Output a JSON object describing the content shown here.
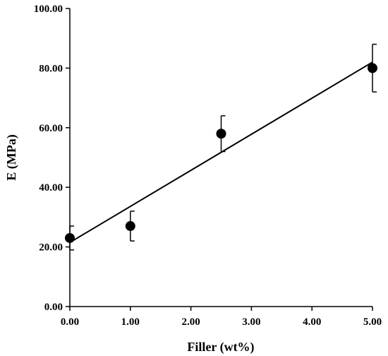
{
  "chart_data": {
    "type": "scatter",
    "xlabel": "Filler (wt%)",
    "ylabel": "E (MPa)",
    "xlim": [
      0,
      5
    ],
    "ylim": [
      0,
      100
    ],
    "x_ticks": [
      "0.00",
      "1.00",
      "2.00",
      "3.00",
      "4.00",
      "5.00"
    ],
    "y_ticks": [
      "0.00",
      "20.00",
      "40.00",
      "60.00",
      "80.00",
      "100.00"
    ],
    "grid": false,
    "legend": "none",
    "series": [
      {
        "points": [
          {
            "x": 0.0,
            "y": 23,
            "err_low": 4,
            "err_high": 4
          },
          {
            "x": 1.0,
            "y": 27,
            "err_low": 5,
            "err_high": 5
          },
          {
            "x": 2.5,
            "y": 58,
            "err_low": 6,
            "err_high": 6
          },
          {
            "x": 5.0,
            "y": 80,
            "err_low": 8,
            "err_high": 8
          }
        ]
      }
    ],
    "fit_line": {
      "type": "linear",
      "x": [
        0,
        5
      ],
      "y": [
        21.5,
        82
      ]
    }
  }
}
